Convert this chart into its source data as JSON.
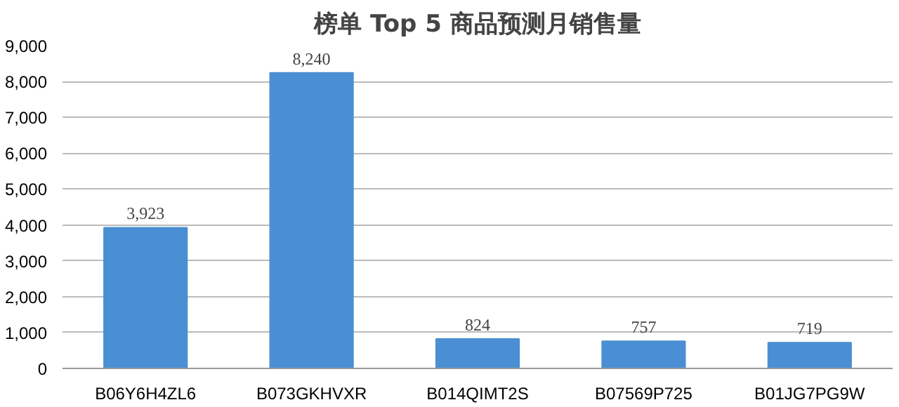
{
  "chart_data": {
    "type": "bar",
    "title": "榜单 Top 5 商品预测月销售量",
    "categories": [
      "B06Y6H4ZL6",
      "B073GKHVXR",
      "B014QIMT2S",
      "B07569P725",
      "B01JG7PG9W"
    ],
    "values": [
      3923,
      8240,
      824,
      757,
      719
    ],
    "color": "#4a8fd3",
    "ylim": [
      0,
      9000
    ],
    "yticks": [
      {
        "value": 0,
        "label": "0"
      },
      {
        "value": 1000,
        "label": "1,000"
      },
      {
        "value": 2000,
        "label": "2,000"
      },
      {
        "value": 3000,
        "label": "3,000"
      },
      {
        "value": 4000,
        "label": "4,000"
      },
      {
        "value": 5000,
        "label": "5,000"
      },
      {
        "value": 6000,
        "label": "6,000"
      },
      {
        "value": 7000,
        "label": "7,000"
      },
      {
        "value": 8000,
        "label": "8,000"
      },
      {
        "value": 9000,
        "label": "9,000"
      }
    ],
    "value_labels": [
      "3,923",
      "8,240",
      "824",
      "757",
      "719"
    ],
    "grid": "y"
  }
}
